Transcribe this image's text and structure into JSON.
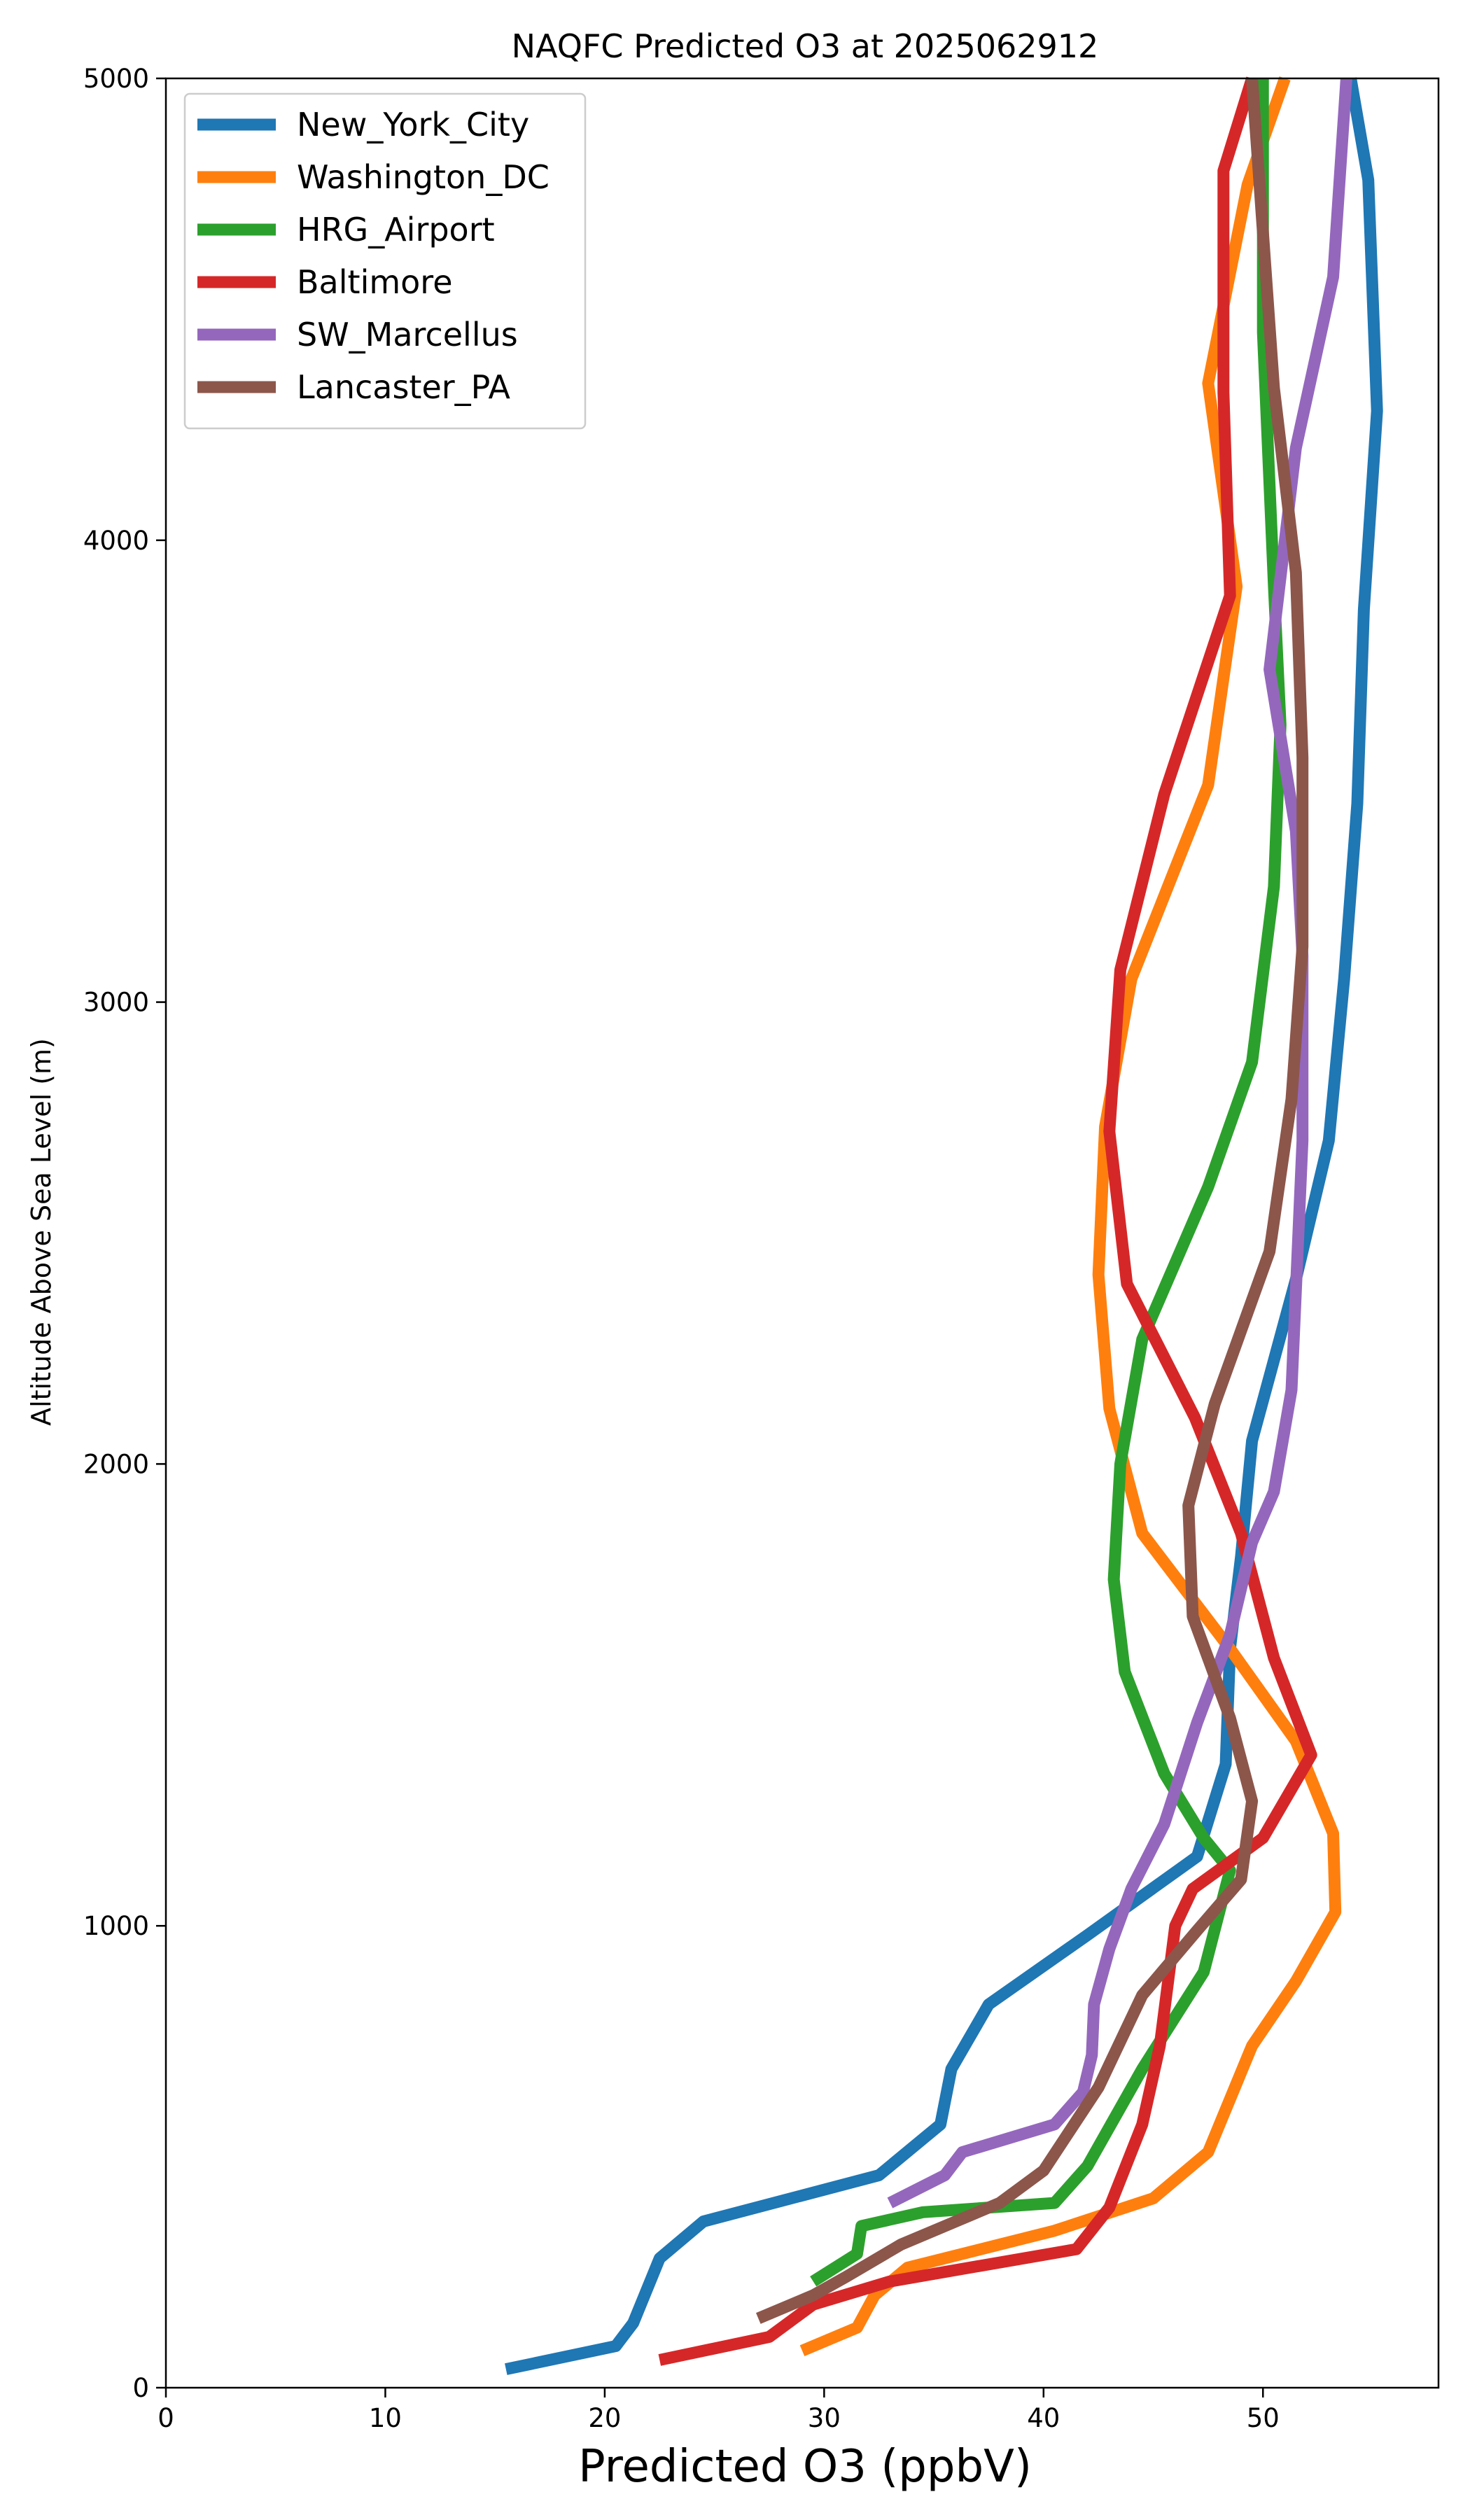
{
  "chart_data": {
    "type": "line",
    "title": "NAQFC Predicted O3 at 2025062912",
    "xlabel": "Predicted O3 (ppbV)",
    "ylabel": "Altitude Above Sea Level (m)",
    "xlim": [
      0,
      58
    ],
    "ylim": [
      0,
      5000
    ],
    "xticks": [
      0,
      10,
      20,
      30,
      40,
      50
    ],
    "yticks": [
      0,
      1000,
      2000,
      3000,
      4000,
      5000
    ],
    "grid": false,
    "legend_position": "upper-left",
    "series": [
      {
        "name": "New_York_City",
        "color": "#1f77b4",
        "points": [
          [
            15.5,
            40
          ],
          [
            20.5,
            90
          ],
          [
            21.3,
            140
          ],
          [
            22.5,
            280
          ],
          [
            24.5,
            360
          ],
          [
            32.5,
            460
          ],
          [
            35.3,
            570
          ],
          [
            35.8,
            690
          ],
          [
            37.5,
            830
          ],
          [
            42.0,
            980
          ],
          [
            47.0,
            1150
          ],
          [
            48.3,
            1350
          ],
          [
            48.5,
            1600
          ],
          [
            49.0,
            1800
          ],
          [
            49.5,
            2050
          ],
          [
            51.5,
            2400
          ],
          [
            53.0,
            2700
          ],
          [
            53.7,
            3050
          ],
          [
            54.3,
            3430
          ],
          [
            54.6,
            3850
          ],
          [
            55.2,
            4280
          ],
          [
            54.8,
            4780
          ],
          [
            54.0,
            5000
          ]
        ]
      },
      {
        "name": "Washington_DC",
        "color": "#ff7f0e",
        "points": [
          [
            29.0,
            80
          ],
          [
            31.5,
            130
          ],
          [
            32.3,
            200
          ],
          [
            33.8,
            260
          ],
          [
            40.5,
            340
          ],
          [
            45.0,
            410
          ],
          [
            47.5,
            510
          ],
          [
            49.5,
            740
          ],
          [
            51.5,
            880
          ],
          [
            53.3,
            1030
          ],
          [
            53.2,
            1200
          ],
          [
            51.5,
            1400
          ],
          [
            48.5,
            1600
          ],
          [
            44.5,
            1850
          ],
          [
            43.0,
            2120
          ],
          [
            42.5,
            2410
          ],
          [
            42.8,
            2730
          ],
          [
            44.0,
            3050
          ],
          [
            47.5,
            3470
          ],
          [
            48.8,
            3900
          ],
          [
            47.5,
            4340
          ],
          [
            49.3,
            4770
          ],
          [
            51.0,
            5000
          ]
        ]
      },
      {
        "name": "HRG_Airport",
        "color": "#2ca02c",
        "points": [
          [
            29.5,
            230
          ],
          [
            31.5,
            290
          ],
          [
            31.7,
            350
          ],
          [
            34.5,
            380
          ],
          [
            40.5,
            400
          ],
          [
            42.0,
            480
          ],
          [
            44.5,
            690
          ],
          [
            47.3,
            900
          ],
          [
            48.5,
            1120
          ],
          [
            47.3,
            1190
          ],
          [
            45.5,
            1330
          ],
          [
            43.7,
            1550
          ],
          [
            43.2,
            1750
          ],
          [
            43.5,
            2000
          ],
          [
            44.5,
            2270
          ],
          [
            47.5,
            2600
          ],
          [
            49.5,
            2870
          ],
          [
            50.5,
            3250
          ],
          [
            50.8,
            3600
          ],
          [
            50.5,
            3900
          ],
          [
            50.0,
            4450
          ],
          [
            50.0,
            5000
          ]
        ]
      },
      {
        "name": "Baltimore",
        "color": "#d62728",
        "points": [
          [
            22.5,
            60
          ],
          [
            27.5,
            110
          ],
          [
            29.5,
            180
          ],
          [
            33.0,
            230
          ],
          [
            41.5,
            300
          ],
          [
            43.0,
            390
          ],
          [
            44.5,
            570
          ],
          [
            45.3,
            740
          ],
          [
            46.0,
            1000
          ],
          [
            46.8,
            1080
          ],
          [
            50.0,
            1190
          ],
          [
            52.2,
            1370
          ],
          [
            50.5,
            1580
          ],
          [
            49.0,
            1850
          ],
          [
            46.9,
            2100
          ],
          [
            43.8,
            2390
          ],
          [
            43.0,
            2720
          ],
          [
            43.5,
            3070
          ],
          [
            45.5,
            3450
          ],
          [
            48.5,
            3880
          ],
          [
            48.2,
            4320
          ],
          [
            48.2,
            4800
          ],
          [
            49.5,
            5000
          ]
        ]
      },
      {
        "name": "SW_Marcellus",
        "color": "#9467bd",
        "points": [
          [
            33.0,
            400
          ],
          [
            35.5,
            460
          ],
          [
            36.3,
            510
          ],
          [
            40.5,
            570
          ],
          [
            41.8,
            640
          ],
          [
            42.2,
            720
          ],
          [
            42.3,
            830
          ],
          [
            43.0,
            950
          ],
          [
            44.0,
            1080
          ],
          [
            45.5,
            1220
          ],
          [
            47.0,
            1440
          ],
          [
            48.5,
            1630
          ],
          [
            49.5,
            1830
          ],
          [
            50.5,
            1940
          ],
          [
            51.3,
            2160
          ],
          [
            51.8,
            2700
          ],
          [
            51.8,
            3100
          ],
          [
            51.5,
            3370
          ],
          [
            50.3,
            3720
          ],
          [
            51.5,
            4200
          ],
          [
            53.2,
            4570
          ],
          [
            53.8,
            5000
          ]
        ]
      },
      {
        "name": "Lancaster_PA",
        "color": "#8c564b",
        "points": [
          [
            27.0,
            150
          ],
          [
            29.5,
            200
          ],
          [
            31.0,
            240
          ],
          [
            33.5,
            310
          ],
          [
            38.0,
            400
          ],
          [
            40.0,
            470
          ],
          [
            42.5,
            650
          ],
          [
            44.5,
            850
          ],
          [
            47.0,
            990
          ],
          [
            49.0,
            1100
          ],
          [
            49.5,
            1270
          ],
          [
            48.5,
            1450
          ],
          [
            46.8,
            1670
          ],
          [
            46.6,
            1910
          ],
          [
            47.8,
            2130
          ],
          [
            50.3,
            2460
          ],
          [
            51.3,
            2790
          ],
          [
            51.8,
            3120
          ],
          [
            51.8,
            3530
          ],
          [
            51.5,
            3930
          ],
          [
            50.5,
            4330
          ],
          [
            49.8,
            4800
          ],
          [
            49.5,
            5000
          ]
        ]
      }
    ]
  }
}
